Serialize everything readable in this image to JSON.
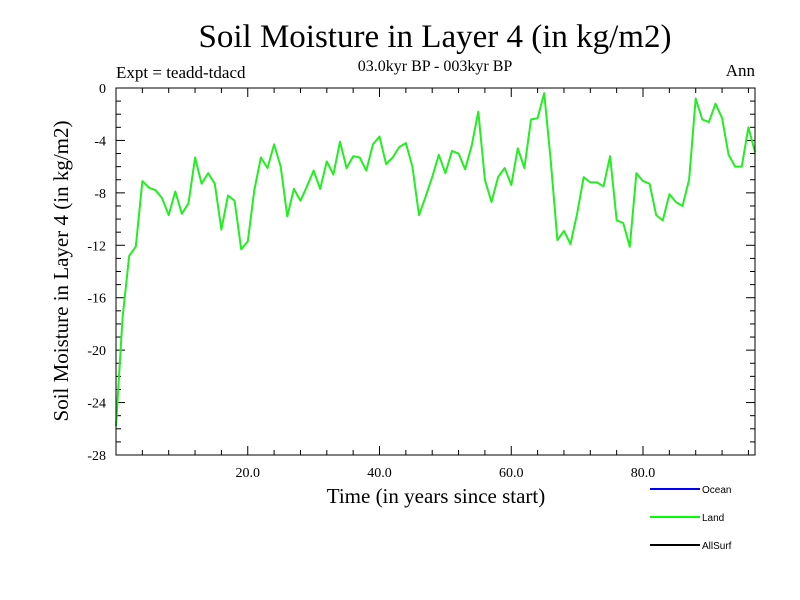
{
  "chart_data": {
    "type": "line",
    "title": "Soil Moisture in Layer 4 (in kg/m2)",
    "subtitle": "03.0kyr BP - 003kyr BP",
    "experiment_label": "Expt = teadd-tdacd",
    "period_label": "Ann",
    "xlabel": "Time (in years since start)",
    "ylabel": "Soil Moisture in Layer 4 (in kg/m2)",
    "xlim": [
      0,
      97
    ],
    "ylim": [
      -28,
      0
    ],
    "x_ticks": [
      20,
      40,
      60,
      80
    ],
    "x_tick_labels": [
      "20.0",
      "40.0",
      "60.0",
      "80.0"
    ],
    "y_ticks": [
      0,
      -4,
      -8,
      -12,
      -16,
      -20,
      -24,
      -28
    ],
    "y_tick_labels": [
      "0",
      "-4",
      "-8",
      "-12",
      "-16",
      "-20",
      "-24",
      "-28"
    ],
    "legend": [
      {
        "name": "Ocean",
        "color": "#0000ff"
      },
      {
        "name": "Land",
        "color": "#00ff00"
      },
      {
        "name": "AllSurf",
        "color": "#000000"
      }
    ],
    "series": [
      {
        "name": "Land",
        "color": "#22ee22",
        "x": [
          0,
          1,
          2,
          3,
          4,
          5,
          6,
          7,
          8,
          9,
          10,
          11,
          12,
          13,
          14,
          15,
          16,
          17,
          18,
          19,
          20,
          21,
          22,
          23,
          24,
          25,
          26,
          27,
          28,
          29,
          30,
          31,
          32,
          33,
          34,
          35,
          36,
          37,
          38,
          39,
          40,
          41,
          42,
          43,
          44,
          45,
          46,
          47,
          48,
          49,
          50,
          51,
          52,
          53,
          54,
          55,
          56,
          57,
          58,
          59,
          60,
          61,
          62,
          63,
          64,
          65,
          66,
          67,
          68,
          69,
          70,
          71,
          72,
          73,
          74,
          75,
          76,
          77,
          78,
          79,
          80,
          81,
          82,
          83,
          84,
          85,
          86,
          87,
          88,
          89,
          90,
          91,
          92,
          93,
          94,
          95,
          96,
          97
        ],
        "values": [
          -25.8,
          -17.5,
          -12.8,
          -12.1,
          -7.1,
          -7.6,
          -7.8,
          -8.4,
          -9.7,
          -7.9,
          -9.6,
          -8.8,
          -5.3,
          -7.3,
          -6.5,
          -7.3,
          -10.8,
          -8.2,
          -8.6,
          -12.3,
          -11.7,
          -7.8,
          -5.3,
          -6.1,
          -4.3,
          -6.0,
          -9.8,
          -7.7,
          -8.6,
          -7.5,
          -6.3,
          -7.7,
          -5.6,
          -6.6,
          -4.1,
          -6.1,
          -5.2,
          -5.3,
          -6.3,
          -4.3,
          -3.7,
          -5.8,
          -5.3,
          -4.5,
          -4.2,
          -6.0,
          -9.7,
          -8.3,
          -6.8,
          -5.1,
          -6.5,
          -4.8,
          -5.0,
          -6.2,
          -4.4,
          -1.8,
          -7.0,
          -8.7,
          -6.8,
          -6.1,
          -7.4,
          -4.6,
          -6.1,
          -2.4,
          -2.3,
          -0.4,
          -5.6,
          -11.6,
          -10.9,
          -11.9,
          -9.6,
          -6.8,
          -7.2,
          -7.2,
          -7.5,
          -5.2,
          -10.1,
          -10.3,
          -12.1,
          -6.5,
          -7.1,
          -7.3,
          -9.7,
          -10.1,
          -8.1,
          -8.7,
          -9.0,
          -7.0,
          -0.8,
          -2.4,
          -2.6,
          -1.2,
          -2.3,
          -5.1,
          -6.0,
          -6.0,
          -3.0,
          -4.9
        ]
      }
    ]
  }
}
